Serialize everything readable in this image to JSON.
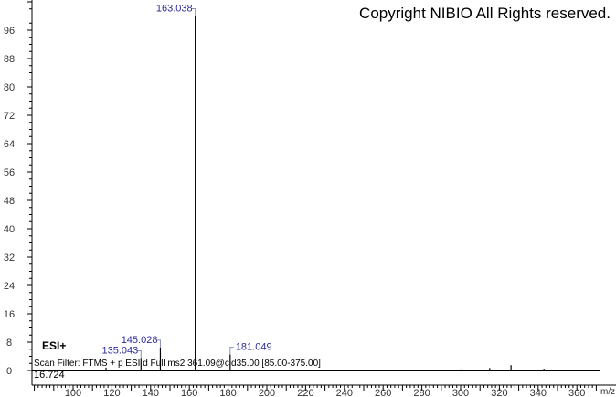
{
  "chart_data": {
    "type": "bar",
    "title": "",
    "copyright": "Copyright NIBIO All Rights reserved.",
    "ionization": "ESI+",
    "scan_filter": "Scan Filter: FTMS + p ESI d Full ms2 361.09@cid35.00 [85.00-375.00]",
    "retention_label": "16.724",
    "xlabel": "m/z",
    "ylabel": "",
    "xlim": [
      79,
      371
    ],
    "ylim": [
      0,
      100
    ],
    "x_ticks": [
      100,
      120,
      140,
      160,
      180,
      200,
      220,
      240,
      260,
      280,
      300,
      320,
      340,
      360
    ],
    "y_ticks": [
      0,
      8,
      16,
      24,
      32,
      40,
      48,
      56,
      64,
      72,
      80,
      88,
      96
    ],
    "grid": false,
    "peaks": [
      {
        "mz": 117.0,
        "intensity": 0.8,
        "label": ""
      },
      {
        "mz": 135.043,
        "intensity": 3.5,
        "label": "135.043"
      },
      {
        "mz": 145.028,
        "intensity": 6.5,
        "label": "145.028"
      },
      {
        "mz": 163.038,
        "intensity": 100,
        "label": "163.038"
      },
      {
        "mz": 181.049,
        "intensity": 4.5,
        "label": "181.049"
      },
      {
        "mz": 300.0,
        "intensity": 0.3,
        "label": ""
      },
      {
        "mz": 315.0,
        "intensity": 0.7,
        "label": ""
      },
      {
        "mz": 326.0,
        "intensity": 1.5,
        "label": ""
      },
      {
        "mz": 343.0,
        "intensity": 0.5,
        "label": ""
      }
    ],
    "colors": {
      "peak": "#000000",
      "label": "#2b2b9a",
      "bracket": "#8a8fb8"
    }
  }
}
